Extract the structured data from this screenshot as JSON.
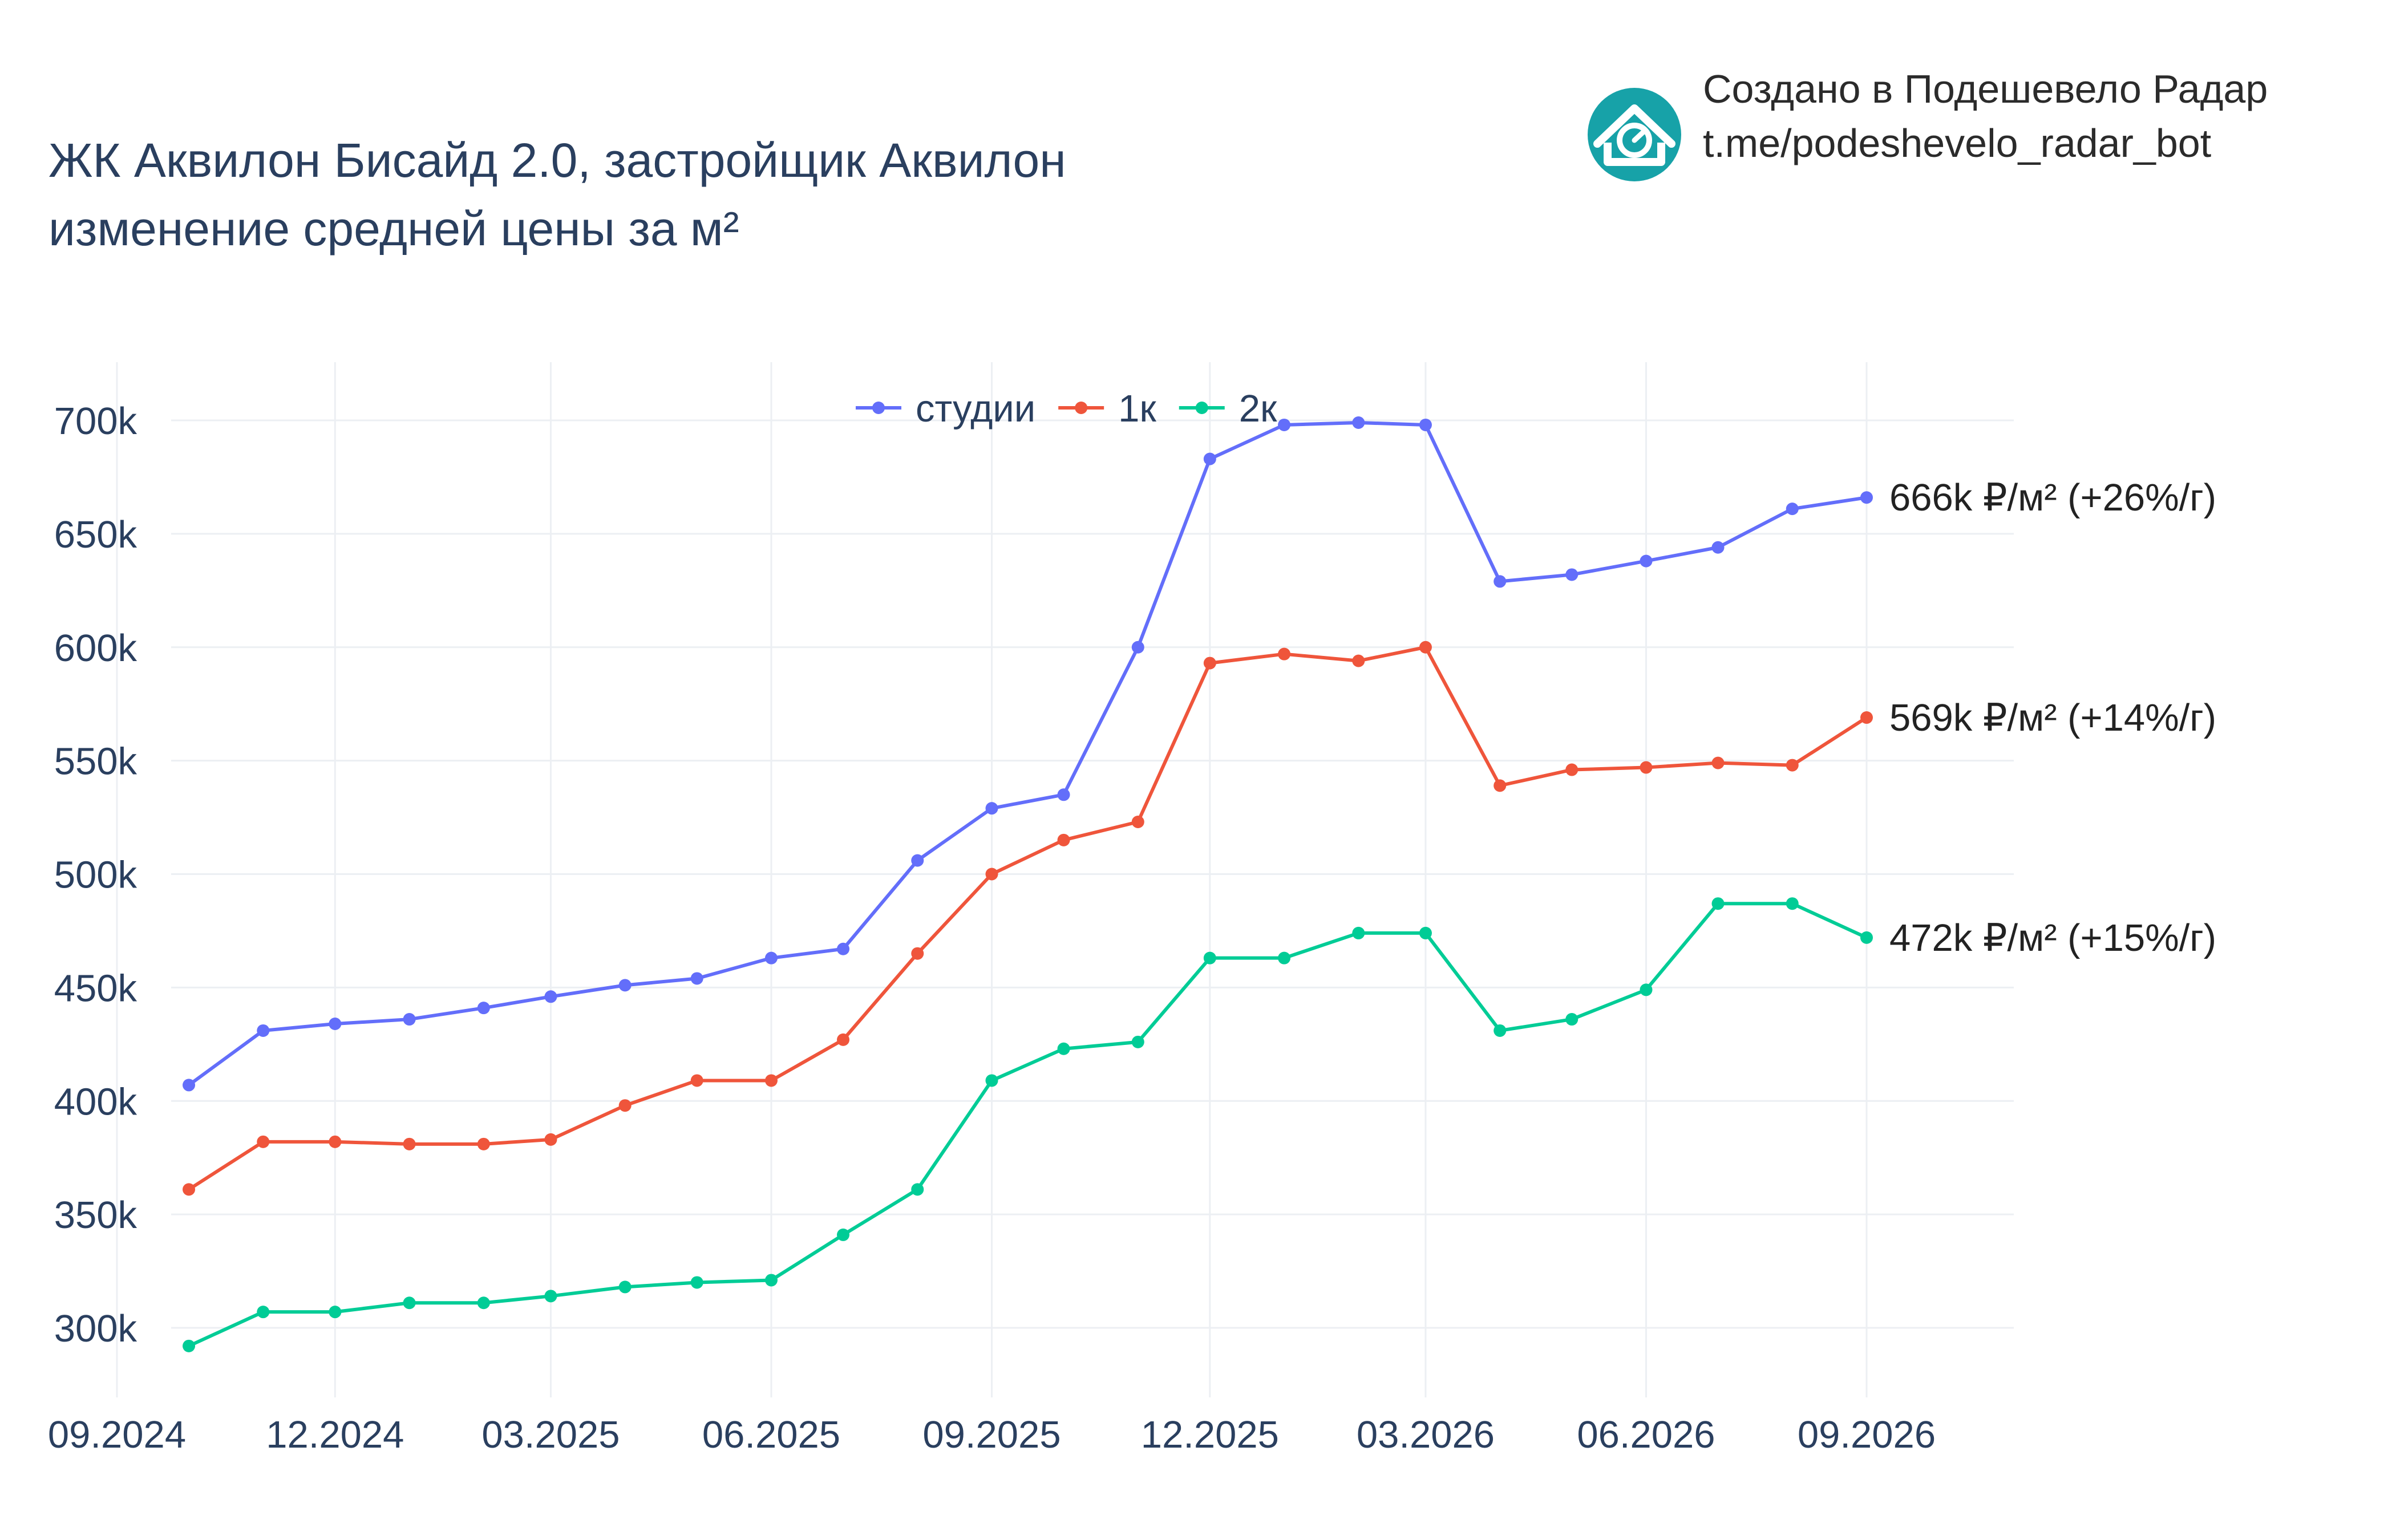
{
  "title_line1": "ЖК Аквилон Бисайд 2.0, застройщик Аквилон",
  "title_line2": "изменение средней цены за м²",
  "brand": {
    "line1": "Создано в Подешевело Радар",
    "line2": "t.me/podeshevelo_radar_bot",
    "icon": "house-clock-icon",
    "color": "#17a2a8"
  },
  "chart_data": {
    "type": "line",
    "x_labels": [
      "09.2024",
      "12.2024",
      "03.2025",
      "06.2025",
      "09.2025",
      "12.2025",
      "03.2026",
      "06.2026",
      "09.2026"
    ],
    "x": [
      "2024-10",
      "2024-11",
      "2024-12",
      "2025-01",
      "2025-02",
      "2025-03",
      "2025-04",
      "2025-05",
      "2025-06",
      "2025-07",
      "2025-08",
      "2025-09",
      "2025-10",
      "2025-11",
      "2025-12",
      "2026-01",
      "2026-02",
      "2026-03",
      "2026-04",
      "2026-05",
      "2026-06",
      "2026-07",
      "2026-08",
      "2026-09"
    ],
    "y_ticks": [
      "300k",
      "350k",
      "400k",
      "450k",
      "500k",
      "550k",
      "600k",
      "650k",
      "700k"
    ],
    "ylim": [
      275000,
      725000
    ],
    "grid": true,
    "legend_position": "top-center",
    "series": [
      {
        "name": "студии",
        "color": "#636efa",
        "end_label": "666k ₽/м² (+26%/г)",
        "values": [
          407000,
          431000,
          434000,
          436000,
          441000,
          446000,
          451000,
          454000,
          463000,
          467000,
          506000,
          529000,
          535000,
          600000,
          683000,
          698000,
          699000,
          698000,
          629000,
          632000,
          638000,
          644000,
          661000,
          666000
        ]
      },
      {
        "name": "1к",
        "color": "#ef553b",
        "end_label": "569k ₽/м² (+14%/г)",
        "values": [
          361000,
          382000,
          382000,
          381000,
          381000,
          383000,
          398000,
          409000,
          409000,
          427000,
          465000,
          500000,
          515000,
          523000,
          593000,
          597000,
          594000,
          600000,
          539000,
          546000,
          547000,
          549000,
          548000,
          569000
        ]
      },
      {
        "name": "2к",
        "color": "#00cc96",
        "end_label": "472k ₽/м² (+15%/г)",
        "values": [
          292000,
          307000,
          307000,
          311000,
          311000,
          314000,
          318000,
          320000,
          321000,
          341000,
          361000,
          409000,
          423000,
          426000,
          463000,
          463000,
          474000,
          474000,
          431000,
          436000,
          449000,
          487000,
          487000,
          472000
        ]
      }
    ]
  }
}
